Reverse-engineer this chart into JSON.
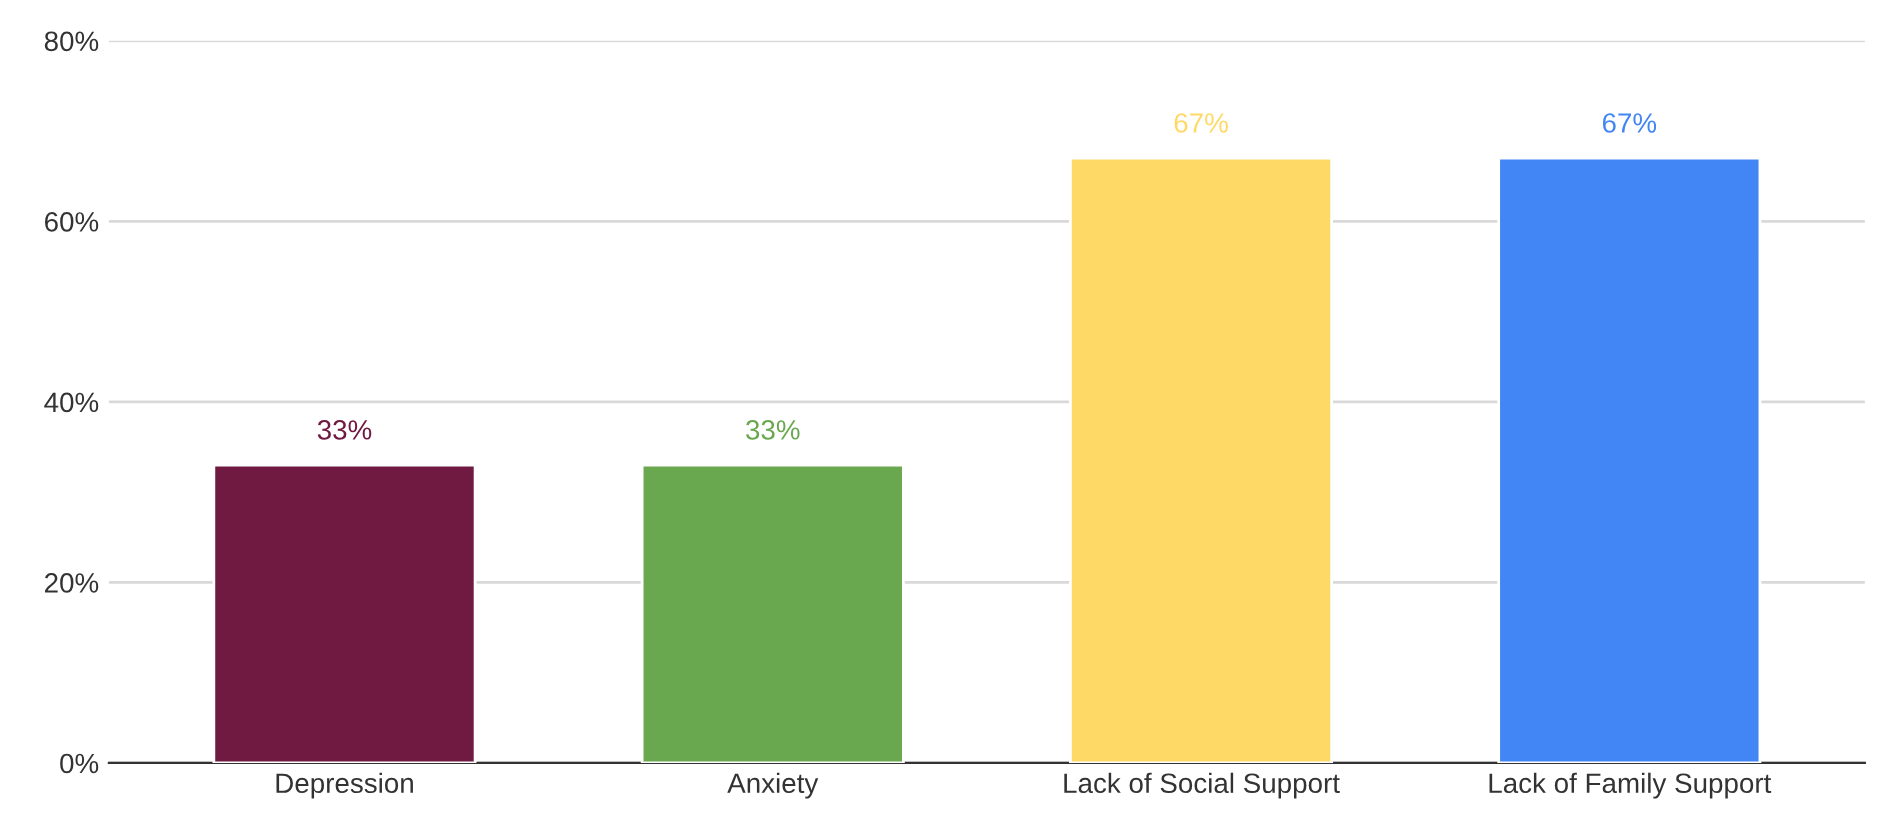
{
  "chart_data": {
    "type": "bar",
    "categories": [
      "Depression",
      "Anxiety",
      "Lack of Social Support",
      "Lack of Family Support"
    ],
    "values": [
      33,
      33,
      67,
      67
    ],
    "colors": [
      "#701a41",
      "#6aa84f",
      "#ffd966",
      "#4285f4"
    ],
    "value_labels": [
      "33%",
      "33%",
      "67%",
      "67%"
    ],
    "ylim": [
      0,
      80
    ],
    "yticks": [
      {
        "value": 0,
        "label": "0%"
      },
      {
        "value": 20,
        "label": "20%"
      },
      {
        "value": 40,
        "label": "40%"
      },
      {
        "value": 60,
        "label": "60%"
      },
      {
        "value": 80,
        "label": "80%"
      }
    ],
    "grid": "y",
    "legend": false
  }
}
